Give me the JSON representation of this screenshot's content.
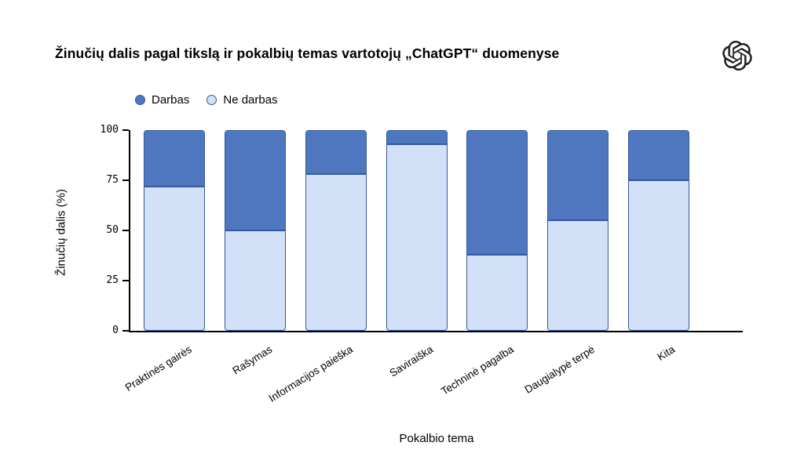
{
  "header": {
    "title": "Žinučių dalis pagal tikslą ir pokalbių temas vartotojų „ChatGPT“ duomenyse",
    "logo_icon": "openai-logo"
  },
  "chart_data": {
    "type": "bar",
    "stacked": true,
    "title": "Žinučių dalis pagal tikslą ir pokalbių temas vartotojų „ChatGPT“ duomenyse",
    "categories": [
      "Praktinės gairės",
      "Rašymas",
      "Informacijos paieška",
      "Saviraiška",
      "Techninė pagalba",
      "Daugialypė terpė",
      "Kita"
    ],
    "series": [
      {
        "name": "Darbas",
        "color": "#4F77C0",
        "values": [
          28,
          50,
          22,
          7,
          62,
          45,
          25
        ]
      },
      {
        "name": "Ne darbas",
        "color": "#D2E0F8",
        "values": [
          72,
          50,
          78,
          93,
          38,
          55,
          75
        ]
      }
    ],
    "bottom_series": "Ne darbas",
    "xlabel": "Pokalbio tema",
    "ylabel": "Žinučių dalis (%)",
    "ylim": [
      0,
      100
    ],
    "yticks": [
      0,
      25,
      50,
      75,
      100
    ],
    "grid": false,
    "legend_position": "top-left",
    "bar_border_color": "#35589B",
    "background_color": "#FFFFFF",
    "axis_color": "#000000"
  }
}
